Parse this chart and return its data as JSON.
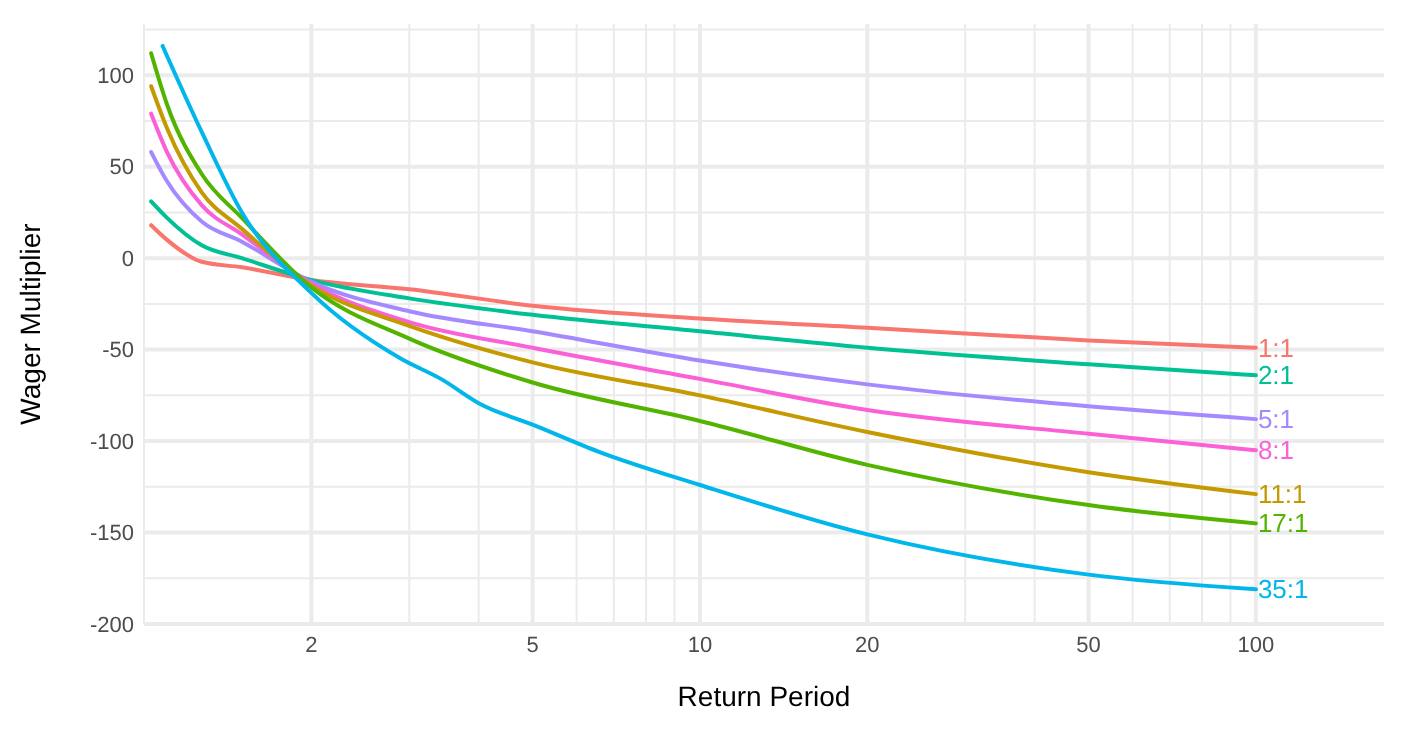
{
  "chart_data": {
    "type": "line",
    "xlabel": "Return Period",
    "ylabel": "Wager Multiplier",
    "log": "x",
    "grid": true,
    "xlim": [
      1,
      170
    ],
    "ylim": [
      -200,
      128
    ],
    "xticks": [
      {
        "value": 1,
        "label": null
      },
      2,
      {
        "value": 3,
        "label": null
      },
      {
        "value": 4,
        "label": null
      },
      5,
      {
        "value": 6,
        "label": null
      },
      {
        "value": 7,
        "label": null
      },
      {
        "value": 8,
        "label": null
      },
      {
        "value": 9,
        "label": null
      },
      10,
      20,
      {
        "value": 30,
        "label": null
      },
      {
        "value": 40,
        "label": null
      },
      50,
      {
        "value": 60,
        "label": null
      },
      {
        "value": 70,
        "label": null
      },
      {
        "value": 80,
        "label": null
      },
      {
        "value": 90,
        "label": null
      },
      100
    ],
    "yticks": [
      -200,
      {
        "value": -175,
        "label": null
      },
      -150,
      {
        "value": -125,
        "label": null
      },
      -100,
      {
        "value": -75,
        "label": null
      },
      -50,
      {
        "value": -25,
        "label": null
      },
      0,
      {
        "value": 25,
        "label": null
      },
      50,
      {
        "value": 75,
        "label": null
      },
      100,
      {
        "value": 125,
        "label": null
      }
    ],
    "x": [
      1.03,
      1.1,
      1.27,
      1.5,
      2,
      3,
      5,
      10,
      20,
      50,
      100
    ],
    "series": [
      {
        "name": "1:1",
        "color": "#f8766d",
        "values": [
          18,
          10,
          -2,
          -5,
          -12,
          -17,
          -26,
          -33,
          -38,
          -45,
          -49
        ]
      },
      {
        "name": "2:1",
        "color": "#00c094",
        "values": [
          31,
          22,
          7,
          0,
          -12,
          -22,
          -31,
          -40,
          -49,
          -58,
          -64
        ]
      },
      {
        "name": "5:1",
        "color": "#a58aff",
        "values": [
          58,
          42,
          20,
          9,
          -13,
          -29,
          -40,
          -56,
          -69,
          -81,
          -88
        ]
      },
      {
        "name": "8:1",
        "color": "#fb61d7",
        "values": [
          79,
          58,
          29,
          13,
          -14,
          -35,
          -49,
          -66,
          -83,
          -96,
          -105
        ]
      },
      {
        "name": "11:1",
        "color": "#c49a00",
        "values": [
          94,
          71,
          36,
          16,
          -15,
          -37,
          -57,
          -75,
          -95,
          -117,
          -129
        ]
      },
      {
        "name": "17:1",
        "color": "#53b400",
        "values": [
          112,
          84,
          46,
          22,
          -16,
          -44,
          -68,
          -89,
          -113,
          -135,
          -145
        ]
      },
      {
        "name": "35:1",
        "color": "#00b6eb",
        "x": [
          1.08,
          1.27,
          1.5,
          2,
          2.9,
          3.42,
          4.04,
          5,
          6.6,
          10,
          20,
          50,
          100
        ],
        "values": [
          116,
          69,
          25,
          -19,
          -55,
          -66,
          -80,
          -91,
          -106,
          -124,
          -151,
          -173,
          -181
        ]
      }
    ]
  }
}
